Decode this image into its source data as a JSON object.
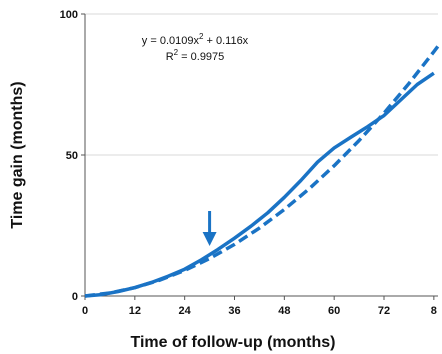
{
  "chart_data": {
    "type": "line",
    "xlabel": "Time of follow-up (months)",
    "ylabel": "Time gain (months)",
    "xlim": [
      0,
      85
    ],
    "ylim": [
      0,
      100
    ],
    "x_ticks": [
      "0",
      "12",
      "24",
      "36",
      "48",
      "60",
      "72",
      "8"
    ],
    "y_ticks": [
      "0",
      "50",
      "100"
    ],
    "grid": "horizontal",
    "colors": {
      "line": "#1a73c5",
      "grid": "#d9d9d9",
      "axis": "#555555"
    },
    "series": [
      {
        "style": "solid",
        "x": [
          0,
          4,
          8,
          12,
          16,
          20,
          24,
          28,
          32,
          36,
          40,
          44,
          48,
          52,
          56,
          60,
          64,
          68,
          72,
          76,
          80,
          84
        ],
        "y": [
          0,
          0.5,
          1.6,
          3,
          4.8,
          7,
          9.5,
          12.8,
          16.5,
          20.5,
          24.8,
          29.5,
          35,
          41,
          47.5,
          52.5,
          56.3,
          60,
          64,
          69.5,
          75,
          79
        ]
      },
      {
        "style": "dashed",
        "equation": "y = 0.0109x² + 0.116x",
        "x": [
          0,
          6,
          12,
          18,
          24,
          30,
          36,
          42,
          48,
          54,
          60,
          66,
          72,
          78,
          84,
          85
        ],
        "y": [
          0,
          1.09,
          2.96,
          5.62,
          9.06,
          13.29,
          18.3,
          24.1,
          30.68,
          38.05,
          46.2,
          55.14,
          64.86,
          75.36,
          86.65,
          88.6
        ]
      }
    ],
    "annotations": {
      "equation_line1": "y = 0.0109x",
      "equation_sup1": "2",
      "equation_line1_rest": " + 0.116x",
      "r2_prefix": "R",
      "r2_sup": "2",
      "r2_rest": " = 0.9975",
      "arrow_x": 30
    }
  }
}
